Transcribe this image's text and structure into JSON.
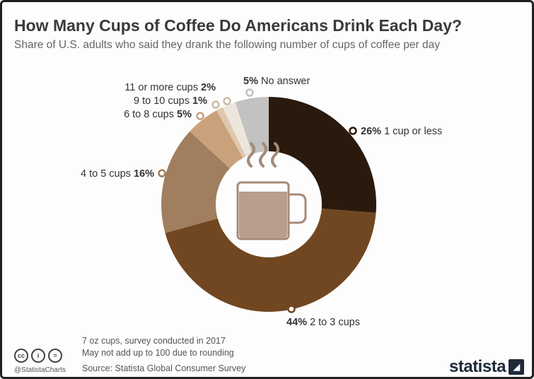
{
  "header": {
    "title": "How Many Cups of Coffee Do Americans Drink Each Day?",
    "subtitle": "Share of U.S. adults who said they drank the following number of cups of coffee per day"
  },
  "chart_data": {
    "type": "pie",
    "variant": "donut",
    "slices": [
      {
        "label": "1 cup or less",
        "value": 26,
        "display": "26%",
        "color": "#2a1a0d"
      },
      {
        "label": "2 to 3 cups",
        "value": 44,
        "display": "44%",
        "color": "#714721"
      },
      {
        "label": "4 to 5 cups",
        "value": 16,
        "display": "16%",
        "color": "#a07e5e"
      },
      {
        "label": "6 to 8 cups",
        "value": 5,
        "display": "5%",
        "color": "#c9a27c"
      },
      {
        "label": "9 to 10 cups",
        "value": 1,
        "display": "1%",
        "color": "#dfc7ad"
      },
      {
        "label": "11 or more cups",
        "value": 2,
        "display": "2%",
        "color": "#ece6dd"
      },
      {
        "label": "No answer",
        "value": 5,
        "display": "5%",
        "color": "#c2c2c2"
      }
    ]
  },
  "footer": {
    "note1": "7 oz cups, survey conducted in 2017",
    "note2": "May not add up to 100 due to rounding",
    "source": "Source: Statista Global Consumer Survey",
    "handle": "@StatistaCharts",
    "brand": "statista",
    "license_icons": [
      "cc",
      "i",
      "="
    ]
  }
}
